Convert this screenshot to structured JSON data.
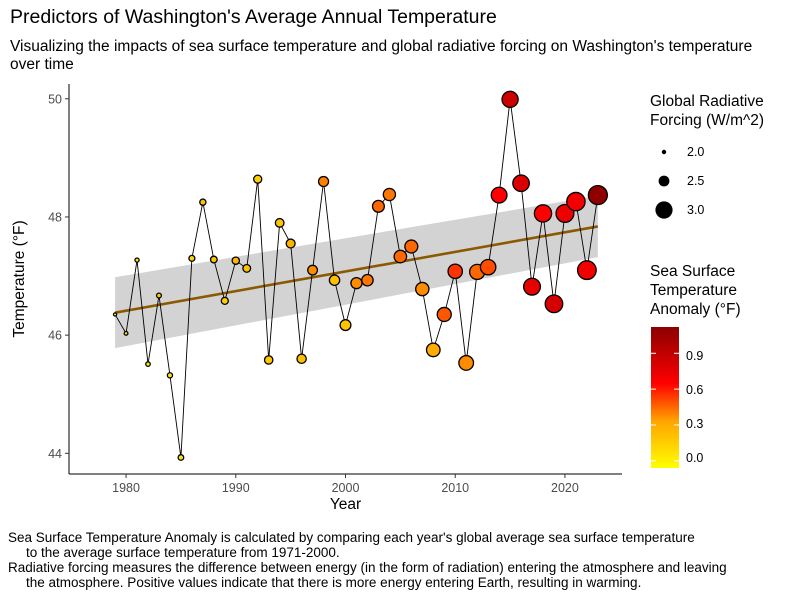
{
  "title": "Predictors of Washington's Average Annual Temperature",
  "subtitle": "Visualizing the impacts of sea surface temperature and global radiative forcing on Washington's temperature over time",
  "caption": {
    "line1a": "Sea Surface Temperature Anomaly is calculated by comparing each year's global average sea surface temperature",
    "line1b": "to the average surface temperature from 1971-2000.",
    "line2a": "Radiative forcing measures the difference between energy (in the form of radiation) entering the atmosphere and leaving",
    "line2b": "the atmosphere. Positive values indicate that there is more energy entering Earth, resulting in warming."
  },
  "legend_size": {
    "title_line1": "Global Radiative",
    "title_line2": "Forcing (W/m^2)",
    "labels": [
      "2.0",
      "2.5",
      "3.0"
    ]
  },
  "legend_color": {
    "title_line1": "Sea Surface",
    "title_line2": "Temperature",
    "title_line3": "Anomaly (°F)",
    "labels": [
      "0.9",
      "0.6",
      "0.3",
      "0.0"
    ]
  },
  "colors": {
    "trend": "#8B5A00",
    "ribbon": "#D3D3D3",
    "scale_low": "#FFFF00",
    "scale_mid": "#FFA500",
    "scale_high1": "#FF0000",
    "scale_high2": "#8B0000"
  },
  "chart_data": {
    "type": "scatter",
    "xlabel": "Year",
    "ylabel": "Temperature (°F)",
    "xlim": [
      1974.8,
      2025.2
    ],
    "ylim": [
      43.65,
      50.25
    ],
    "x_ticks": [
      1980,
      1990,
      2000,
      2010,
      2020
    ],
    "y_ticks": [
      44,
      46,
      48,
      50
    ],
    "grid": false,
    "legend_position": "right",
    "trend": {
      "x": [
        1979,
        2023
      ],
      "y": [
        46.38,
        47.84
      ],
      "ribbon_lower": [
        45.78,
        47.32
      ],
      "ribbon_upper": [
        46.98,
        48.36
      ]
    },
    "points": [
      {
        "year": 1979,
        "temp": 46.35,
        "anomaly": -0.05,
        "forcing": 1.7
      },
      {
        "year": 1980,
        "temp": 46.03,
        "anomaly": 0.05,
        "forcing": 1.75
      },
      {
        "year": 1981,
        "temp": 47.27,
        "anomaly": 0.08,
        "forcing": 1.79
      },
      {
        "year": 1982,
        "temp": 45.51,
        "anomaly": 0.03,
        "forcing": 1.82
      },
      {
        "year": 1983,
        "temp": 46.67,
        "anomaly": 0.15,
        "forcing": 1.85
      },
      {
        "year": 1984,
        "temp": 45.32,
        "anomaly": 0.05,
        "forcing": 1.88
      },
      {
        "year": 1985,
        "temp": 43.93,
        "anomaly": 0.05,
        "forcing": 1.92
      },
      {
        "year": 1986,
        "temp": 47.3,
        "anomaly": 0.12,
        "forcing": 1.95
      },
      {
        "year": 1987,
        "temp": 48.25,
        "anomaly": 0.2,
        "forcing": 1.98
      },
      {
        "year": 1988,
        "temp": 47.28,
        "anomaly": 0.2,
        "forcing": 2.02
      },
      {
        "year": 1989,
        "temp": 46.58,
        "anomaly": 0.15,
        "forcing": 2.05
      },
      {
        "year": 1990,
        "temp": 47.26,
        "anomaly": 0.25,
        "forcing": 2.08
      },
      {
        "year": 1991,
        "temp": 47.13,
        "anomaly": 0.2,
        "forcing": 2.12
      },
      {
        "year": 1992,
        "temp": 48.64,
        "anomaly": 0.15,
        "forcing": 2.15
      },
      {
        "year": 1993,
        "temp": 45.58,
        "anomaly": 0.18,
        "forcing": 2.18
      },
      {
        "year": 1994,
        "temp": 47.9,
        "anomaly": 0.2,
        "forcing": 2.2
      },
      {
        "year": 1995,
        "temp": 47.55,
        "anomaly": 0.28,
        "forcing": 2.23
      },
      {
        "year": 1996,
        "temp": 45.6,
        "anomaly": 0.22,
        "forcing": 2.26
      },
      {
        "year": 1997,
        "temp": 47.1,
        "anomaly": 0.38,
        "forcing": 2.3
      },
      {
        "year": 1998,
        "temp": 48.6,
        "anomaly": 0.4,
        "forcing": 2.33
      },
      {
        "year": 1999,
        "temp": 46.93,
        "anomaly": 0.22,
        "forcing": 2.36
      },
      {
        "year": 2000,
        "temp": 46.17,
        "anomaly": 0.2,
        "forcing": 2.4
      },
      {
        "year": 2001,
        "temp": 46.88,
        "anomaly": 0.38,
        "forcing": 2.43
      },
      {
        "year": 2002,
        "temp": 46.93,
        "anomaly": 0.42,
        "forcing": 2.46
      },
      {
        "year": 2003,
        "temp": 48.18,
        "anomaly": 0.45,
        "forcing": 2.5
      },
      {
        "year": 2004,
        "temp": 48.38,
        "anomaly": 0.42,
        "forcing": 2.53
      },
      {
        "year": 2005,
        "temp": 47.33,
        "anomaly": 0.45,
        "forcing": 2.56
      },
      {
        "year": 2006,
        "temp": 47.5,
        "anomaly": 0.45,
        "forcing": 2.6
      },
      {
        "year": 2007,
        "temp": 46.78,
        "anomaly": 0.38,
        "forcing": 2.63
      },
      {
        "year": 2008,
        "temp": 45.75,
        "anomaly": 0.3,
        "forcing": 2.66
      },
      {
        "year": 2009,
        "temp": 46.35,
        "anomaly": 0.48,
        "forcing": 2.7
      },
      {
        "year": 2010,
        "temp": 47.08,
        "anomaly": 0.55,
        "forcing": 2.73
      },
      {
        "year": 2011,
        "temp": 45.53,
        "anomaly": 0.38,
        "forcing": 2.76
      },
      {
        "year": 2012,
        "temp": 47.07,
        "anomaly": 0.45,
        "forcing": 2.8
      },
      {
        "year": 2013,
        "temp": 47.15,
        "anomaly": 0.5,
        "forcing": 2.83
      },
      {
        "year": 2014,
        "temp": 48.37,
        "anomaly": 0.65,
        "forcing": 2.86
      },
      {
        "year": 2015,
        "temp": 49.99,
        "anomaly": 0.85,
        "forcing": 2.9
      },
      {
        "year": 2016,
        "temp": 48.57,
        "anomaly": 0.8,
        "forcing": 2.93
      },
      {
        "year": 2017,
        "temp": 46.82,
        "anomaly": 0.75,
        "forcing": 2.96
      },
      {
        "year": 2018,
        "temp": 48.06,
        "anomaly": 0.65,
        "forcing": 3.0
      },
      {
        "year": 2019,
        "temp": 46.53,
        "anomaly": 0.82,
        "forcing": 3.03
      },
      {
        "year": 2020,
        "temp": 48.06,
        "anomaly": 0.72,
        "forcing": 3.06
      },
      {
        "year": 2021,
        "temp": 48.26,
        "anomaly": 0.7,
        "forcing": 3.1
      },
      {
        "year": 2022,
        "temp": 47.1,
        "anomaly": 0.7,
        "forcing": 3.13
      },
      {
        "year": 2023,
        "temp": 48.37,
        "anomaly": 1.1,
        "forcing": 3.16
      }
    ]
  }
}
